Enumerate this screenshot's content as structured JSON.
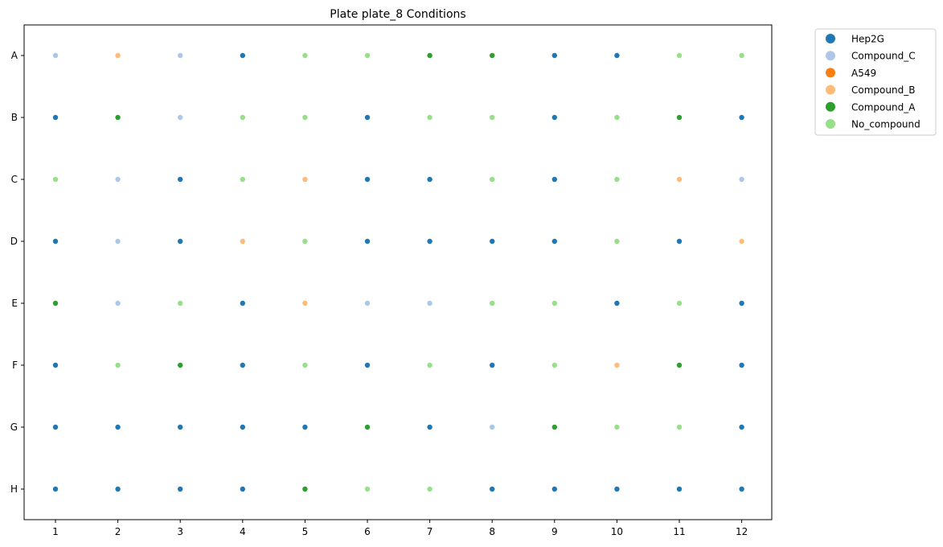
{
  "chart_data": {
    "type": "scatter",
    "title": "Plate plate_8 Conditions",
    "xlabel": "",
    "ylabel": "",
    "x_ticks": [
      "1",
      "2",
      "3",
      "4",
      "5",
      "6",
      "7",
      "8",
      "9",
      "10",
      "11",
      "12"
    ],
    "y_ticks": [
      "A",
      "B",
      "C",
      "D",
      "E",
      "F",
      "G",
      "H"
    ],
    "xlim": [
      0.5,
      12.5
    ],
    "ylim": [
      "H",
      "A"
    ],
    "grid": false,
    "legend_position": "outside-top-right",
    "legend": [
      {
        "name": "Hep2G",
        "color": "#1f77b4"
      },
      {
        "name": "Compound_C",
        "color": "#aec7e8"
      },
      {
        "name": "A549",
        "color": "#ff7f0e"
      },
      {
        "name": "Compound_B",
        "color": "#ffbb78"
      },
      {
        "name": "Compound_A",
        "color": "#2ca02c"
      },
      {
        "name": "No_compound",
        "color": "#98df8a"
      }
    ],
    "wells": {
      "A": [
        "Compound_C",
        "Compound_B",
        "Compound_C",
        "Hep2G",
        "No_compound",
        "No_compound",
        "Compound_A",
        "Compound_A",
        "Hep2G",
        "Hep2G",
        "No_compound",
        "No_compound"
      ],
      "B": [
        "Hep2G",
        "Compound_A",
        "Compound_C",
        "No_compound",
        "No_compound",
        "Hep2G",
        "No_compound",
        "No_compound",
        "Hep2G",
        "No_compound",
        "Compound_A",
        "Hep2G"
      ],
      "C": [
        "No_compound",
        "Compound_C",
        "Hep2G",
        "No_compound",
        "Compound_B",
        "Hep2G",
        "Hep2G",
        "No_compound",
        "Hep2G",
        "No_compound",
        "Compound_B",
        "Compound_C"
      ],
      "D": [
        "Hep2G",
        "Compound_C",
        "Hep2G",
        "Compound_B",
        "No_compound",
        "Hep2G",
        "Hep2G",
        "Hep2G",
        "Hep2G",
        "No_compound",
        "Hep2G",
        "Compound_B"
      ],
      "E": [
        "Compound_A",
        "Compound_C",
        "No_compound",
        "Hep2G",
        "Compound_B",
        "Compound_C",
        "Compound_C",
        "No_compound",
        "No_compound",
        "Hep2G",
        "No_compound",
        "Hep2G"
      ],
      "F": [
        "Hep2G",
        "No_compound",
        "Compound_A",
        "Hep2G",
        "No_compound",
        "Hep2G",
        "No_compound",
        "Hep2G",
        "No_compound",
        "Compound_B",
        "Compound_A",
        "Hep2G"
      ],
      "G": [
        "Hep2G",
        "Hep2G",
        "Hep2G",
        "Hep2G",
        "Hep2G",
        "Compound_A",
        "Hep2G",
        "Compound_C",
        "Compound_A",
        "No_compound",
        "No_compound",
        "Hep2G"
      ],
      "H": [
        "Hep2G",
        "Hep2G",
        "Hep2G",
        "Hep2G",
        "Compound_A",
        "No_compound",
        "No_compound",
        "Hep2G",
        "Hep2G",
        "Hep2G",
        "Hep2G",
        "Hep2G"
      ]
    }
  }
}
